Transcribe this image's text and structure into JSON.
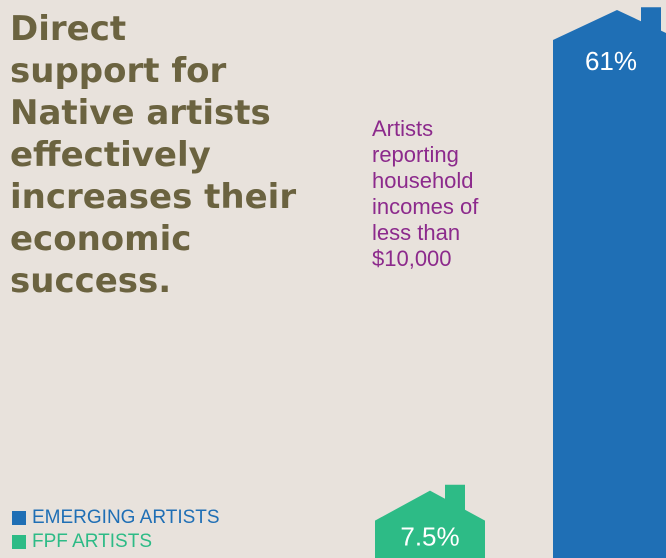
{
  "headline": "Direct\nsupport for\nNative artists\neffectively\nincreases their\neconomic\nsuccess.",
  "colors": {
    "background": "#e8e2dc",
    "headline": "#6b6340",
    "subtitle": "#8c2a8c",
    "emerging": "#1f6fb5",
    "fpf": "#2dbb86"
  },
  "chart_data": {
    "type": "bar",
    "title": "Artists\nreporting\nhousehold\nincomes of\nless than\n$10,000",
    "categories": [
      "FPF ARTISTS",
      "EMERGING ARTISTS"
    ],
    "values": [
      7.5,
      61
    ],
    "value_labels": [
      "7.5%",
      "61%"
    ],
    "value_unit": "%",
    "ylim": [
      0,
      61
    ],
    "bar_shape": "house",
    "legend": [
      {
        "label": "EMERGING ARTISTS",
        "color_key": "emerging"
      },
      {
        "label": "FPF ARTISTS",
        "color_key": "fpf"
      }
    ],
    "legend_position": "bottom-left",
    "grid": false
  }
}
